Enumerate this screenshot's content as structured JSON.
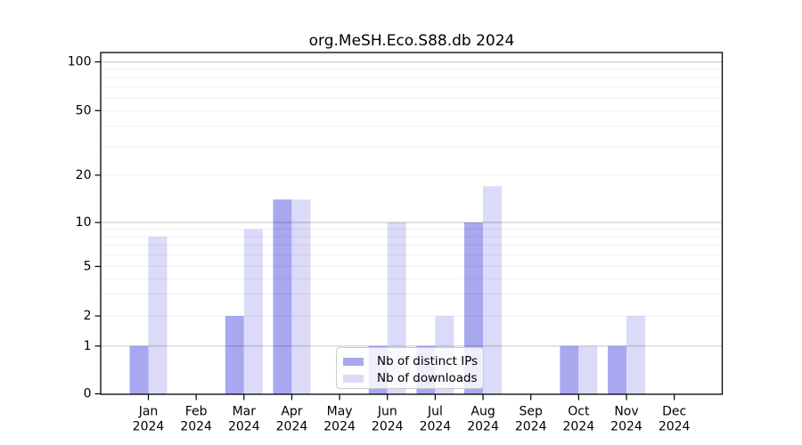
{
  "title": "org.MeSH.Eco.S88.db 2024",
  "chart_data": {
    "type": "bar",
    "title": "org.MeSH.Eco.S88.db 2024",
    "categories": [
      "Jan",
      "Feb",
      "Mar",
      "Apr",
      "May",
      "Jun",
      "Jul",
      "Aug",
      "Sep",
      "Oct",
      "Nov",
      "Dec"
    ],
    "year_label": "2024",
    "series": [
      {
        "name": "Nb of distinct IPs",
        "color": "#a8a8f0",
        "values": [
          1,
          0,
          2,
          14,
          0,
          1,
          1,
          10,
          0,
          1,
          1,
          0
        ]
      },
      {
        "name": "Nb of downloads",
        "color": "#dbdbf9",
        "values": [
          8,
          0,
          9,
          14,
          0,
          10,
          2,
          17,
          0,
          1,
          2,
          0
        ]
      }
    ],
    "y_ticks": [
      0,
      1,
      2,
      5,
      10,
      20,
      50,
      100
    ],
    "y_tick_labels": [
      "0",
      "1",
      "2",
      "5",
      "10",
      "20",
      "50",
      "100"
    ],
    "y_major_gridlines": [
      1,
      10,
      100
    ],
    "y_minor_gridlines": [
      2,
      3,
      4,
      5,
      6,
      7,
      8,
      9,
      20,
      30,
      40,
      50,
      60,
      70,
      80,
      90
    ],
    "ylim": [
      0,
      115
    ],
    "yscale": "log-with-zero-baseline",
    "grid": true,
    "legend": {
      "position": "inside-bottom-center",
      "entries": [
        "Nb of distinct IPs",
        "Nb of downloads"
      ]
    }
  },
  "colors": {
    "background": "#ffffff",
    "bar_distinct_ips": "#a8a8f0",
    "bar_downloads": "#dbdbf9",
    "axis": "#000000",
    "text": "#000000",
    "grid_major": "rgba(0,0,0,0.20)",
    "grid_minor": "rgba(0,0,0,0.07)",
    "legend_border": "#cccccc"
  }
}
